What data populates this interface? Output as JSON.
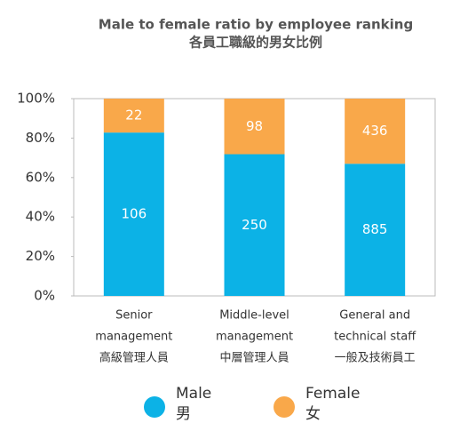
{
  "chart_data": {
    "type": "bar",
    "stacking": "percent",
    "title": "Male to female ratio by employee ranking",
    "subtitle": "各員工職級的男女比例",
    "categories": [
      [
        "Senior",
        "management",
        "高級管理人員"
      ],
      [
        "Middle-level",
        "management",
        "中層管理人員"
      ],
      [
        "General and",
        "technical staff",
        "一般及技術員工"
      ]
    ],
    "series": [
      {
        "name": [
          "Male",
          "男"
        ],
        "color": "#0cb2e6",
        "values": [
          106,
          250,
          885
        ]
      },
      {
        "name": [
          "Female",
          "女"
        ],
        "color": "#f9a84a",
        "values": [
          22,
          98,
          436
        ]
      }
    ],
    "ylim": [
      0,
      100
    ],
    "yticks": [
      {
        "value": 0,
        "label": "0%"
      },
      {
        "value": 20,
        "label": "20%"
      },
      {
        "value": 40,
        "label": "40%"
      },
      {
        "value": 60,
        "label": "60%"
      },
      {
        "value": 80,
        "label": "80%"
      },
      {
        "value": 100,
        "label": "100%"
      }
    ],
    "legend": "bottom"
  }
}
